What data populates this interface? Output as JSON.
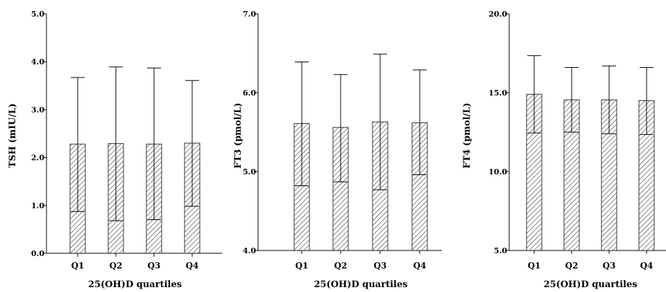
{
  "chart_data": [
    {
      "type": "bar",
      "title": "",
      "categories": [
        "Q1",
        "Q2",
        "Q3",
        "Q4"
      ],
      "values": [
        2.28,
        2.29,
        2.28,
        2.3
      ],
      "error_upper": [
        3.67,
        3.89,
        3.87,
        3.61
      ],
      "error_lower": [
        0.87,
        0.68,
        0.7,
        0.98
      ],
      "xlabel": "25(OH)D quartiles",
      "ylabel": "TSH (mIU/L)",
      "ylim": [
        0.0,
        5.0
      ],
      "yticks": [
        "0.0",
        "1.0",
        "2.0",
        "3.0",
        "4.0",
        "5.0"
      ],
      "ytick_values": [
        0,
        1,
        2,
        3,
        4,
        5
      ],
      "grid": false,
      "bar_fill": "hatched",
      "bar_color": "#333333"
    },
    {
      "type": "bar",
      "title": "",
      "categories": [
        "Q1",
        "Q2",
        "Q3",
        "Q4"
      ],
      "values": [
        5.61,
        5.56,
        5.63,
        5.62
      ],
      "error_upper": [
        6.39,
        6.23,
        6.49,
        6.29
      ],
      "error_lower": [
        4.82,
        4.87,
        4.77,
        4.96
      ],
      "xlabel": "25(OH)D quartiles",
      "ylabel": "FT3 (pmol/L)",
      "ylim": [
        4.0,
        7.0
      ],
      "yticks": [
        "4.0",
        "5.0",
        "6.0",
        "7.0"
      ],
      "ytick_values": [
        4,
        5,
        6,
        7
      ],
      "grid": false,
      "bar_fill": "hatched",
      "bar_color": "#333333"
    },
    {
      "type": "bar",
      "title": "",
      "categories": [
        "Q1",
        "Q2",
        "Q3",
        "Q4"
      ],
      "values": [
        14.9,
        14.55,
        14.55,
        14.5
      ],
      "error_upper": [
        17.35,
        16.6,
        16.7,
        16.6
      ],
      "error_lower": [
        12.45,
        12.5,
        12.4,
        12.35
      ],
      "xlabel": "25(OH)D quartiles",
      "ylabel": "FT4 (pmol/L)",
      "ylim": [
        5.0,
        20.0
      ],
      "yticks": [
        "5.0",
        "10.0",
        "15.0",
        "20.0"
      ],
      "ytick_values": [
        5,
        10,
        15,
        20
      ],
      "grid": false,
      "bar_fill": "hatched",
      "bar_color": "#333333"
    }
  ]
}
